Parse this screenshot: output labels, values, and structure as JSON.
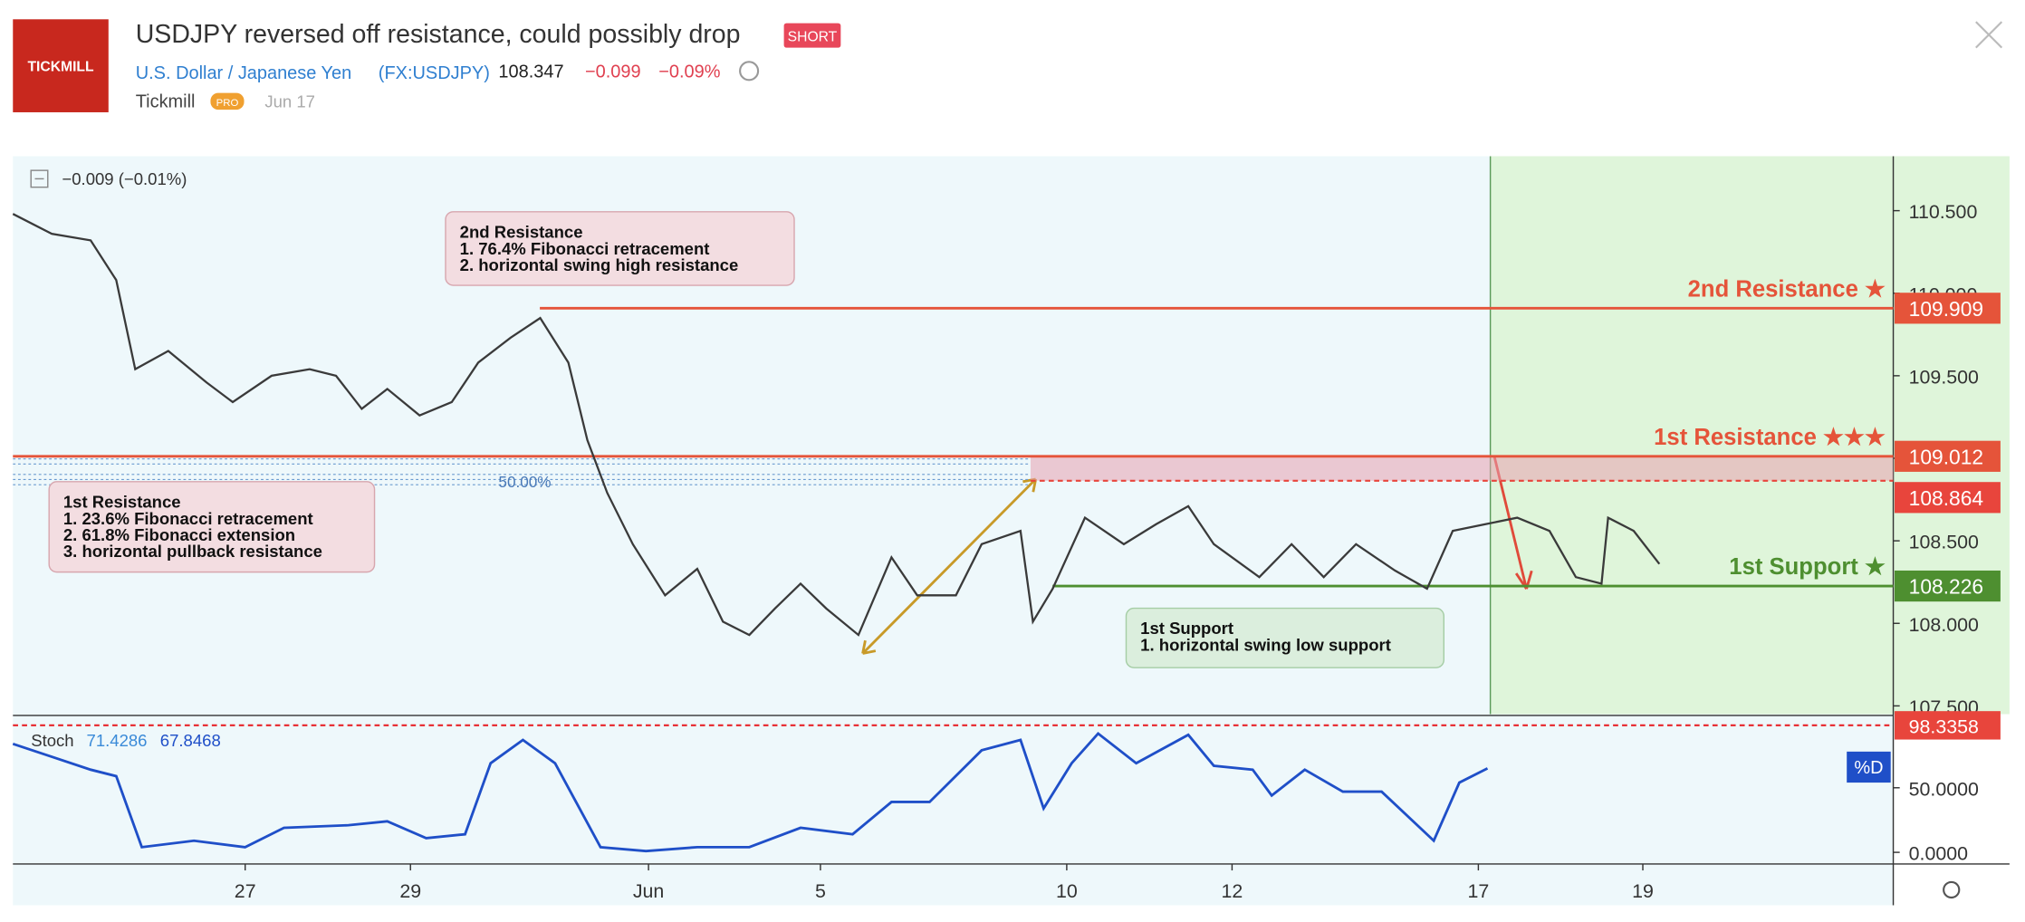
{
  "header": {
    "logo": "TICKMILL",
    "title": "USDJPY reversed off resistance, could possibly drop",
    "badge": "SHORT",
    "symbol_name": "U.S. Dollar / Japanese Yen",
    "symbol": "(FX:USDJPY)",
    "price": "108.347",
    "change": "−0.099",
    "change_pct": "−0.09%",
    "author": "Tickmill",
    "author_badge": "PRO",
    "date": "Jun 17"
  },
  "chart_data": [
    {
      "type": "line",
      "legend": "−0.009 (−0.01%)",
      "xlim": [
        0,
        22.75
      ],
      "xticks": [
        {
          "value": 2.81,
          "label": "27"
        },
        {
          "value": 4.81,
          "label": "29"
        },
        {
          "value": 7.69,
          "label": "Jun"
        },
        {
          "value": 9.77,
          "label": "5"
        },
        {
          "value": 12.75,
          "label": "10"
        },
        {
          "value": 14.75,
          "label": "12"
        },
        {
          "value": 17.73,
          "label": "17"
        },
        {
          "value": 19.72,
          "label": "19"
        }
      ],
      "ylim": [
        107.45,
        110.83
      ],
      "yticks": [
        {
          "value": 107.5,
          "label": "107.500"
        },
        {
          "value": 108,
          "label": "108.000"
        },
        {
          "value": 108.5,
          "label": "108.500"
        },
        {
          "value": 109,
          "label": "109.000"
        },
        {
          "value": 109.5,
          "label": "109.500"
        },
        {
          "value": 110,
          "label": "110.000"
        },
        {
          "value": 110.5,
          "label": "110.500"
        }
      ],
      "x": [
        0,
        0.47,
        0.94,
        1.25,
        1.48,
        1.88,
        2.34,
        2.66,
        3.13,
        3.59,
        3.91,
        4.22,
        4.53,
        4.92,
        5.31,
        5.63,
        6.02,
        6.38,
        6.72,
        6.95,
        7.19,
        7.5,
        7.89,
        8.28,
        8.59,
        8.91,
        9.22,
        9.53,
        9.84,
        10.23,
        10.63,
        10.94,
        11.41,
        11.72,
        12.19,
        12.34,
        12.58,
        12.97,
        13.44,
        13.83,
        14.22,
        14.53,
        15.08,
        15.47,
        15.86,
        16.25,
        16.72,
        17.11,
        17.42,
        17.81,
        18.2,
        18.59,
        18.91,
        19.22,
        19.3,
        19.61,
        19.92
      ],
      "series": [
        {
          "color": "#3a3a3a",
          "values": [
            110.48,
            110.36,
            110.32,
            110.08,
            109.54,
            109.65,
            109.46,
            109.34,
            109.5,
            109.54,
            109.5,
            109.3,
            109.42,
            109.26,
            109.34,
            109.58,
            109.73,
            109.85,
            109.58,
            109.11,
            108.79,
            108.48,
            108.17,
            108.33,
            108.01,
            107.93,
            108.09,
            108.24,
            108.09,
            107.93,
            108.4,
            108.17,
            108.17,
            108.48,
            108.56,
            108.01,
            108.21,
            108.64,
            108.48,
            108.6,
            108.71,
            108.48,
            108.28,
            108.48,
            108.28,
            108.48,
            108.32,
            108.21,
            108.56,
            108.6,
            108.64,
            108.56,
            108.28,
            108.24,
            108.64,
            108.56,
            108.36
          ]
        }
      ],
      "levels": [
        {
          "label": "2nd Resistance ★",
          "value": 109.909,
          "color": "#e5543a"
        },
        {
          "label": "1st Resistance ★★★",
          "value": 109.012,
          "color": "#e5543a"
        },
        {
          "value": 108.864,
          "color": "#e8453c"
        },
        {
          "label": "1st Support ★",
          "value": 108.226,
          "color": "#4e8f30"
        }
      ],
      "fib_label": "50.00%",
      "notes": [
        {
          "title": "2nd Resistance",
          "lines": [
            "1. 76.4% Fibonacci retracement",
            "2. horizontal swing high resistance"
          ]
        },
        {
          "title": "1st Resistance",
          "lines": [
            "1. 23.6% Fibonacci retracement",
            "2. 61.8% Fibonacci extension",
            "3. horizontal pullback resistance"
          ]
        },
        {
          "title": "1st Support",
          "lines": [
            "1. horizontal swing low support"
          ]
        }
      ]
    },
    {
      "type": "line",
      "title": "Stoch",
      "k": 71.4286,
      "d": 67.8468,
      "button": "%D",
      "level": 98.3358,
      "xlim": [
        0,
        22.75
      ],
      "ylim": [
        -9,
        106
      ],
      "yticks": [
        {
          "value": 0,
          "label": "0.0000"
        },
        {
          "value": 50,
          "label": "50.0000"
        }
      ],
      "x": [
        0,
        0.47,
        0.94,
        1.25,
        1.56,
        2.19,
        2.81,
        3.28,
        4.06,
        4.53,
        5.0,
        5.47,
        5.78,
        6.17,
        6.56,
        7.11,
        7.66,
        8.28,
        8.91,
        9.53,
        10.16,
        10.63,
        11.09,
        11.72,
        12.19,
        12.47,
        12.81,
        13.13,
        13.59,
        14.22,
        14.53,
        15.0,
        15.23,
        15.63,
        16.09,
        16.56,
        17.19,
        17.5,
        17.84
      ],
      "series": [
        {
          "color": "#1f4fc8",
          "values": [
            84,
            74,
            64,
            59,
            4,
            9,
            4,
            19,
            21,
            24,
            11,
            14,
            69,
            87,
            69,
            4,
            1,
            4,
            4,
            19,
            14,
            39,
            39,
            79,
            87,
            34,
            69,
            92,
            69,
            91,
            67,
            64,
            44,
            64,
            47,
            47,
            9,
            54,
            65
          ]
        }
      ]
    }
  ]
}
